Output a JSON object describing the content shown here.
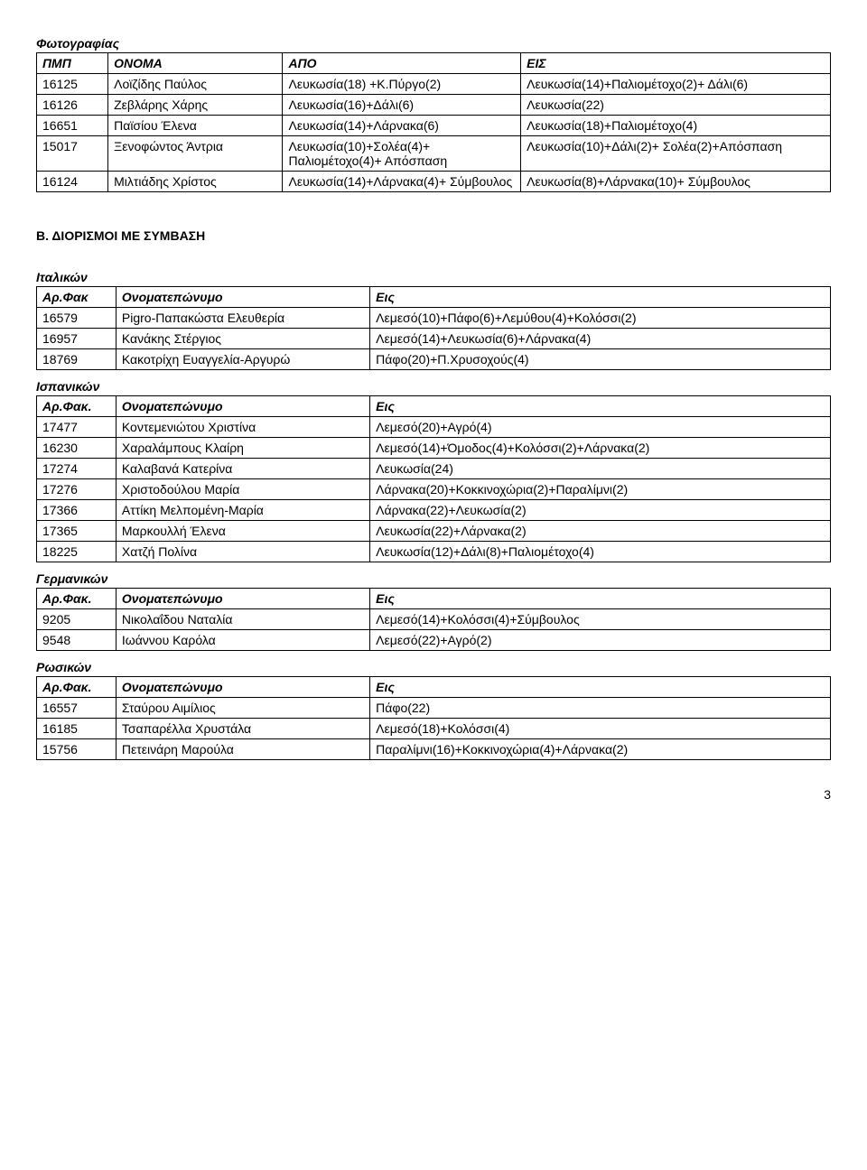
{
  "photography": {
    "title": "Φωτογραφίας",
    "headers": [
      "ΠΜΠ",
      "ΟΝΟΜΑ",
      "ΑΠΟ",
      "ΕΙΣ"
    ],
    "rows": [
      [
        "16125",
        "Λοϊζίδης Παύλος",
        "Λευκωσία(18) +Κ.Πύργο(2)",
        "Λευκωσία(14)+Παλιομέτοχο(2)+ Δάλι(6)"
      ],
      [
        "16126",
        "Ζεβλάρης Χάρης",
        "Λευκωσία(16)+Δάλι(6)",
        "Λευκωσία(22)"
      ],
      [
        "16651",
        "Παϊσίου Έλενα",
        "Λευκωσία(14)+Λάρνακα(6)",
        "Λευκωσία(18)+Παλιομέτοχο(4)"
      ],
      [
        "15017",
        "Ξενοφώντος Άντρια",
        "Λευκωσία(10)+Σολέα(4)+ Παλιομέτοχο(4)+ Απόσπαση",
        "Λευκωσία(10)+Δάλι(2)+ Σολέα(2)+Απόσπαση"
      ],
      [
        "16124",
        "Μιλτιάδης Χρίστος",
        "Λευκωσία(14)+Λάρνακα(4)+ Σύμβουλος",
        "Λευκωσία(8)+Λάρνακα(10)+ Σύμβουλος"
      ]
    ]
  },
  "sectionB": "Β. ΔΙΟΡΙΣΜΟΙ ΜΕ ΣΥΜΒΑΣΗ",
  "commonHeaders": [
    "Αρ.Φακ",
    "Ονοματεπώνυμο",
    "Εις"
  ],
  "commonHeadersDot": [
    "Αρ.Φακ.",
    "Ονοματεπώνυμο",
    "Εις"
  ],
  "italian": {
    "title": "Ιταλικών",
    "rows": [
      [
        "16579",
        "Pigro-Παπακώστα Ελευθερία",
        "Λεμεσό(10)+Πάφο(6)+Λεμύθου(4)+Κολόσσι(2)"
      ],
      [
        "16957",
        "Κανάκης Στέργιος",
        "Λεμεσό(14)+Λευκωσία(6)+Λάρνακα(4)"
      ],
      [
        "18769",
        "Κακοτρίχη Ευαγγελία-Αργυρώ",
        "Πάφο(20)+Π.Χρυσοχούς(4)"
      ]
    ]
  },
  "spanish": {
    "title": "Ισπανικών",
    "rows": [
      [
        "17477",
        "Κοντεμενιώτου Χριστίνα",
        "Λεμεσό(20)+Αγρό(4)"
      ],
      [
        "16230",
        "Χαραλάμπους Κλαίρη",
        "Λεμεσό(14)+Όμοδος(4)+Κολόσσι(2)+Λάρνακα(2)"
      ],
      [
        "17274",
        "Καλαβανά Κατερίνα",
        "Λευκωσία(24)"
      ],
      [
        "17276",
        "Χριστοδούλου Μαρία",
        "Λάρνακα(20)+Κοκκινοχώρια(2)+Παραλίμνι(2)"
      ],
      [
        "17366",
        "Αττίκη Μελπομένη-Μαρία",
        "Λάρνακα(22)+Λευκωσία(2)"
      ],
      [
        "17365",
        "Μαρκουλλή Έλενα",
        "Λευκωσία(22)+Λάρνακα(2)"
      ],
      [
        "18225",
        "Χατζή Πολίνα",
        "Λευκωσία(12)+Δάλι(8)+Παλιομέτοχο(4)"
      ]
    ]
  },
  "german": {
    "title": "Γερμανικών",
    "rows": [
      [
        "9205",
        "Νικολαΐδου Ναταλία",
        "Λεμεσό(14)+Κολόσσι(4)+Σύμβουλος"
      ],
      [
        "9548",
        "Ιωάννου Καρόλα",
        "Λεμεσό(22)+Αγρό(2)"
      ]
    ]
  },
  "russian": {
    "title": "Ρωσικών",
    "rows": [
      [
        "16557",
        "Σταύρου Αιμίλιος",
        "Πάφο(22)"
      ],
      [
        "16185",
        "Τσαπαρέλλα Χρυστάλα",
        "Λεμεσό(18)+Κολόσσι(4)"
      ],
      [
        "15756",
        "Πετεινάρη Μαρούλα",
        "Παραλίμνι(16)+Κοκκινοχώρια(4)+Λάρνακα(2)"
      ]
    ]
  },
  "pageNumber": "3"
}
